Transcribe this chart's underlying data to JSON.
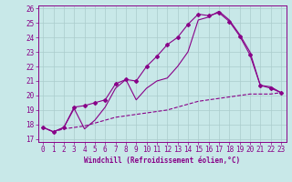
{
  "xlabel": "Windchill (Refroidissement éolien,°C)",
  "bg_color": "#c8e8e8",
  "line_color": "#880088",
  "grid_color": "#aacccc",
  "x_min": 0,
  "x_max": 23,
  "y_min": 17,
  "y_max": 26,
  "line1_x": [
    0,
    1,
    2,
    3,
    4,
    5,
    6,
    7,
    8,
    9,
    10,
    11,
    12,
    13,
    14,
    15,
    16,
    17,
    18,
    19,
    20,
    21,
    22,
    23
  ],
  "line1_y": [
    17.8,
    17.5,
    17.8,
    19.2,
    19.3,
    19.5,
    19.7,
    20.8,
    21.1,
    21.0,
    22.0,
    22.7,
    23.5,
    24.0,
    24.9,
    25.6,
    25.5,
    25.7,
    25.1,
    24.1,
    22.8,
    20.7,
    20.5,
    20.2
  ],
  "line2_x": [
    0,
    1,
    2,
    3,
    4,
    5,
    6,
    7,
    8,
    9,
    10,
    11,
    12,
    13,
    14,
    15,
    16,
    17,
    18,
    19,
    20,
    21,
    22,
    23
  ],
  "line2_y": [
    17.8,
    17.5,
    17.8,
    19.1,
    17.7,
    18.3,
    19.2,
    20.5,
    21.1,
    19.7,
    20.5,
    21.0,
    21.2,
    22.0,
    23.0,
    25.2,
    25.4,
    25.8,
    25.2,
    24.2,
    23.0,
    20.7,
    20.6,
    20.2
  ],
  "line3_x": [
    0,
    1,
    2,
    3,
    4,
    5,
    6,
    7,
    8,
    9,
    10,
    11,
    12,
    13,
    14,
    15,
    16,
    17,
    18,
    19,
    20,
    21,
    22,
    23
  ],
  "line3_y": [
    17.8,
    17.5,
    17.7,
    17.8,
    17.9,
    18.1,
    18.3,
    18.5,
    18.6,
    18.7,
    18.8,
    18.9,
    19.0,
    19.2,
    19.4,
    19.6,
    19.7,
    19.8,
    19.9,
    20.0,
    20.1,
    20.1,
    20.1,
    20.2
  ],
  "ytick_labels": [
    "17",
    "18",
    "19",
    "20",
    "21",
    "22",
    "23",
    "24",
    "25",
    "26"
  ],
  "xtick_labels": [
    "0",
    "1",
    "2",
    "3",
    "4",
    "5",
    "6",
    "7",
    "8",
    "9",
    "10",
    "11",
    "12",
    "13",
    "14",
    "15",
    "16",
    "17",
    "18",
    "19",
    "20",
    "21",
    "22",
    "23"
  ],
  "font_size": 5.5,
  "marker": "D",
  "marker_size": 2.0,
  "lw": 0.8
}
